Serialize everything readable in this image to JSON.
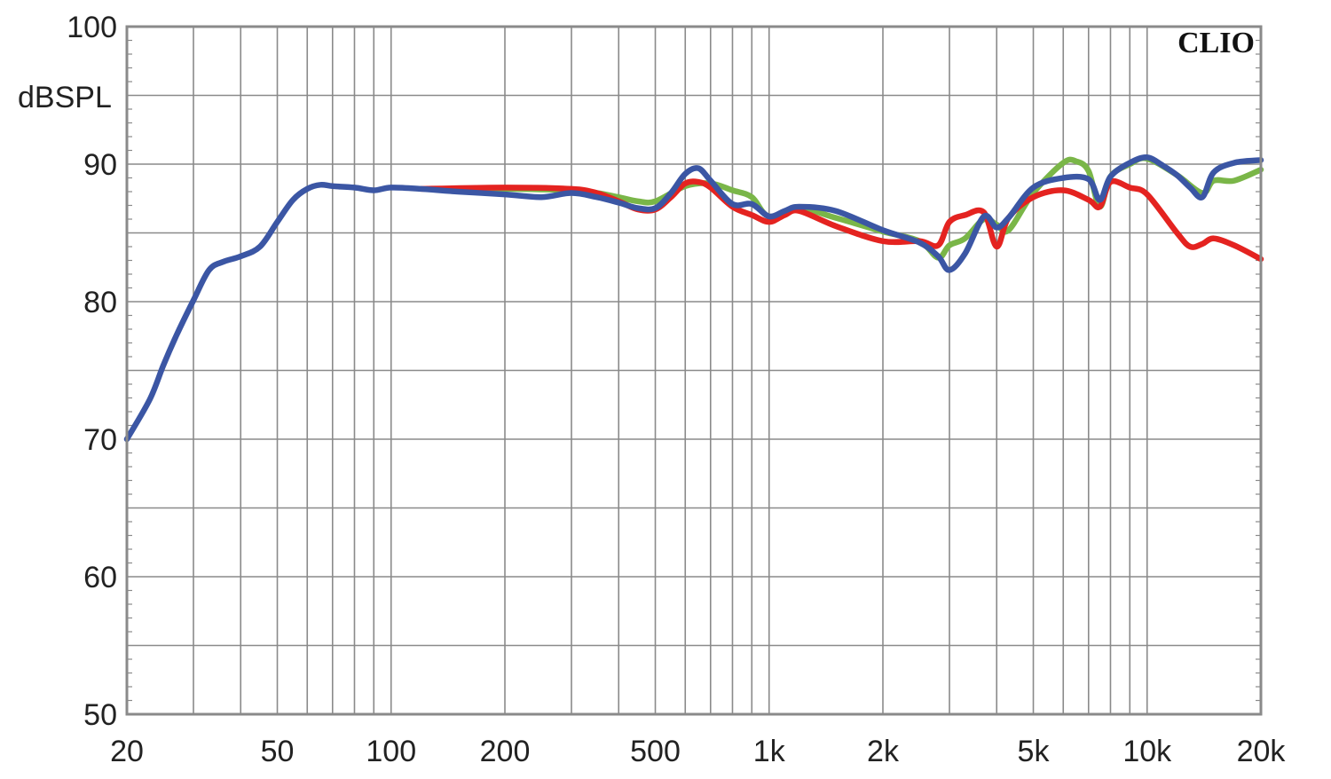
{
  "chart_data": {
    "type": "line",
    "title": "",
    "xlabel": "",
    "ylabel": "dBSPL",
    "brand": "CLIO",
    "x_scale": "log",
    "xlim": [
      20,
      20000
    ],
    "ylim": [
      50,
      100
    ],
    "grid": true,
    "legend": "none",
    "x_ticks": [
      {
        "value": 20,
        "label": "20"
      },
      {
        "value": 50,
        "label": "50"
      },
      {
        "value": 100,
        "label": "100"
      },
      {
        "value": 200,
        "label": "200"
      },
      {
        "value": 500,
        "label": "500"
      },
      {
        "value": 1000,
        "label": "1k"
      },
      {
        "value": 2000,
        "label": "2k"
      },
      {
        "value": 5000,
        "label": "5k"
      },
      {
        "value": 10000,
        "label": "10k"
      },
      {
        "value": 20000,
        "label": "20k"
      }
    ],
    "y_ticks": [
      {
        "value": 50,
        "label": "50"
      },
      {
        "value": 60,
        "label": "60"
      },
      {
        "value": 70,
        "label": "70"
      },
      {
        "value": 80,
        "label": "80"
      },
      {
        "value": 90,
        "label": "90"
      },
      {
        "value": 100,
        "label": "100"
      }
    ],
    "series": [
      {
        "color": "#7ab648",
        "x": [
          125,
          200,
          300,
          350,
          400,
          450,
          500,
          600,
          700,
          800,
          900,
          1000,
          1200,
          1500,
          2000,
          2500,
          2800,
          3000,
          3300,
          3700,
          4000,
          4300,
          5000,
          6000,
          6500,
          7000,
          7500,
          8000,
          9000,
          10000,
          12000,
          14000,
          15000,
          17000,
          20000
        ],
        "y": [
          88.2,
          88.2,
          88.1,
          87.9,
          87.6,
          87.3,
          87.3,
          88.4,
          88.6,
          88.1,
          87.6,
          86.2,
          86.8,
          86.1,
          85.1,
          84.4,
          83.2,
          84.1,
          84.6,
          86.0,
          85.6,
          85.2,
          87.9,
          90.1,
          90.2,
          89.5,
          86.9,
          89.1,
          90.0,
          90.4,
          89.2,
          87.9,
          88.8,
          88.8,
          89.6
        ]
      },
      {
        "color": "#e42320",
        "x": [
          120,
          200,
          300,
          350,
          400,
          450,
          500,
          550,
          600,
          650,
          700,
          800,
          900,
          1000,
          1100,
          1200,
          1500,
          2000,
          2500,
          2800,
          3000,
          3300,
          3700,
          4000,
          4300,
          5000,
          6000,
          7000,
          7500,
          8000,
          9000,
          10000,
          12000,
          13000,
          14000,
          15000,
          17000,
          20000
        ],
        "y": [
          88.2,
          88.3,
          88.2,
          87.9,
          87.3,
          86.7,
          86.7,
          87.6,
          88.6,
          88.7,
          88.3,
          86.9,
          86.3,
          85.8,
          86.3,
          86.6,
          85.5,
          84.4,
          84.4,
          84.1,
          85.8,
          86.3,
          86.5,
          84.0,
          86.1,
          87.6,
          88.1,
          87.4,
          86.9,
          88.7,
          88.3,
          87.8,
          85.0,
          84.0,
          84.2,
          84.6,
          84.1,
          83.1
        ]
      },
      {
        "color": "#3b56a4",
        "x": [
          20,
          23,
          25,
          27,
          30,
          33,
          36,
          40,
          45,
          50,
          55,
          60,
          65,
          70,
          80,
          90,
          100,
          120,
          150,
          200,
          250,
          300,
          350,
          400,
          450,
          500,
          550,
          600,
          650,
          700,
          800,
          900,
          1000,
          1100,
          1200,
          1500,
          2000,
          2500,
          2800,
          3000,
          3300,
          3700,
          4000,
          4300,
          5000,
          6000,
          7000,
          7500,
          8000,
          9000,
          10000,
          11000,
          12000,
          13000,
          14000,
          15000,
          17000,
          20000
        ],
        "y": [
          70.0,
          72.9,
          75.4,
          77.5,
          80.1,
          82.3,
          82.9,
          83.3,
          84.0,
          85.8,
          87.4,
          88.2,
          88.5,
          88.4,
          88.3,
          88.1,
          88.3,
          88.2,
          88.0,
          87.8,
          87.6,
          87.9,
          87.6,
          87.2,
          86.8,
          86.8,
          87.9,
          89.3,
          89.7,
          88.8,
          87.1,
          87.1,
          86.2,
          86.6,
          86.9,
          86.6,
          85.2,
          84.3,
          83.3,
          82.3,
          83.5,
          86.2,
          85.4,
          86.1,
          88.3,
          89.0,
          88.9,
          87.4,
          89.1,
          90.1,
          90.5,
          89.9,
          89.2,
          88.3,
          87.6,
          89.4,
          90.1,
          90.3
        ]
      }
    ]
  }
}
